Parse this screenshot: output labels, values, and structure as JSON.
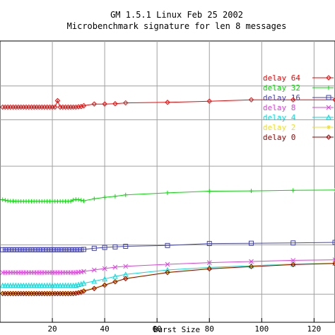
{
  "chart_data": {
    "type": "line",
    "title": "GM 1.5.1 Linux Feb 25 2002",
    "subtitle": "Microbenchmark signature for len 8 messages",
    "xlabel": "Burst Size",
    "ylabel": "",
    "xlim": [
      0,
      128
    ],
    "ylim": [
      0,
      100
    ],
    "x_ticks": [
      20,
      40,
      60,
      80,
      100,
      120
    ],
    "y_gridlines": [
      10,
      27.5,
      55.5,
      72,
      84
    ],
    "grid": true,
    "legend_placement": "right",
    "series": [
      {
        "name": "delay 64",
        "color": "#ff0000",
        "marker": "diamond",
        "x": [
          1,
          2,
          3,
          4,
          5,
          6,
          7,
          8,
          9,
          10,
          11,
          12,
          13,
          14,
          15,
          16,
          17,
          18,
          19,
          20,
          21,
          22,
          23,
          24,
          25,
          26,
          27,
          28,
          29,
          30,
          31,
          32,
          36,
          40,
          44,
          48,
          64,
          80,
          96,
          112,
          128
        ],
        "y": [
          76.5,
          76.5,
          76.5,
          76.5,
          76.5,
          76.5,
          76.5,
          76.5,
          76.5,
          76.5,
          76.5,
          76.5,
          76.5,
          76.5,
          76.5,
          76.5,
          76.5,
          76.5,
          76.5,
          76.5,
          76.5,
          78.8,
          76.5,
          76.5,
          76.5,
          76.5,
          76.5,
          76.5,
          76.5,
          76.6,
          76.7,
          77.0,
          77.6,
          77.6,
          77.7,
          78.0,
          78.2,
          78.6,
          79.1,
          79.1,
          79.1
        ]
      },
      {
        "name": "delay 32",
        "color": "#00dd00",
        "marker": "plus",
        "x": [
          1,
          2,
          3,
          4,
          5,
          6,
          7,
          8,
          9,
          10,
          11,
          12,
          13,
          14,
          15,
          16,
          17,
          18,
          19,
          20,
          21,
          22,
          23,
          24,
          25,
          26,
          27,
          28,
          29,
          30,
          31,
          32,
          36,
          40,
          44,
          48,
          64,
          80,
          96,
          112,
          128
        ],
        "y": [
          43.6,
          43.4,
          43.2,
          43.1,
          43.1,
          43.0,
          43.0,
          43.0,
          43.0,
          43.0,
          43.0,
          43.0,
          43.0,
          43.0,
          43.0,
          43.0,
          43.0,
          43.0,
          43.0,
          43.0,
          43.0,
          43.0,
          43.0,
          43.0,
          43.0,
          43.0,
          43.0,
          43.5,
          43.7,
          43.6,
          43.4,
          43.2,
          43.9,
          44.4,
          44.8,
          45.3,
          46.0,
          46.6,
          46.7,
          46.9,
          47.0
        ]
      },
      {
        "name": "delay 16",
        "color": "#4040c0",
        "marker": "square",
        "x": [
          1,
          2,
          3,
          4,
          5,
          6,
          7,
          8,
          9,
          10,
          11,
          12,
          13,
          14,
          15,
          16,
          17,
          18,
          19,
          20,
          21,
          22,
          23,
          24,
          25,
          26,
          27,
          28,
          29,
          30,
          31,
          32,
          36,
          40,
          44,
          48,
          64,
          80,
          96,
          112,
          128
        ],
        "y": [
          25.8,
          25.8,
          25.8,
          25.8,
          25.8,
          25.8,
          25.8,
          25.8,
          25.8,
          25.8,
          25.8,
          25.8,
          25.8,
          25.8,
          25.8,
          25.8,
          25.8,
          25.8,
          25.8,
          25.8,
          25.8,
          25.8,
          25.8,
          25.8,
          25.8,
          25.8,
          25.8,
          25.8,
          25.8,
          25.8,
          25.8,
          25.9,
          26.3,
          26.6,
          26.8,
          27.0,
          27.3,
          28.0,
          28.1,
          28.2,
          28.4
        ]
      },
      {
        "name": "delay 8",
        "color": "#e040e0",
        "marker": "x",
        "x": [
          1,
          2,
          3,
          4,
          5,
          6,
          7,
          8,
          9,
          10,
          11,
          12,
          13,
          14,
          15,
          16,
          17,
          18,
          19,
          20,
          21,
          22,
          23,
          24,
          25,
          26,
          27,
          28,
          29,
          30,
          31,
          32,
          36,
          40,
          44,
          48,
          64,
          80,
          96,
          112,
          128
        ],
        "y": [
          17.7,
          17.7,
          17.7,
          17.7,
          17.7,
          17.7,
          17.7,
          17.7,
          17.7,
          17.7,
          17.7,
          17.7,
          17.7,
          17.7,
          17.7,
          17.7,
          17.7,
          17.7,
          17.7,
          17.7,
          17.7,
          17.7,
          17.7,
          17.7,
          17.7,
          17.7,
          17.7,
          17.7,
          17.7,
          17.8,
          17.9,
          18.1,
          18.6,
          19.1,
          19.6,
          19.9,
          20.6,
          21.2,
          21.6,
          22.0,
          22.2
        ]
      },
      {
        "name": "delay 4",
        "color": "#00dddd",
        "marker": "triangle",
        "x": [
          1,
          2,
          3,
          4,
          5,
          6,
          7,
          8,
          9,
          10,
          11,
          12,
          13,
          14,
          15,
          16,
          17,
          18,
          19,
          20,
          21,
          22,
          23,
          24,
          25,
          26,
          27,
          28,
          29,
          30,
          31,
          32,
          36,
          40,
          44,
          48,
          64,
          80,
          96,
          112,
          128
        ],
        "y": [
          13.1,
          13.1,
          13.1,
          13.1,
          13.1,
          13.1,
          13.1,
          13.1,
          13.1,
          13.1,
          13.1,
          13.1,
          13.1,
          13.1,
          13.1,
          13.1,
          13.1,
          13.1,
          13.1,
          13.1,
          13.1,
          13.1,
          13.1,
          13.1,
          13.1,
          13.1,
          13.1,
          13.1,
          13.2,
          13.4,
          13.6,
          13.9,
          14.6,
          15.4,
          16.3,
          17.0,
          18.6,
          19.5,
          20.1,
          20.7,
          21.0
        ]
      },
      {
        "name": "delay 2",
        "color": "#f0e020",
        "marker": "star",
        "x": [
          1,
          2,
          3,
          4,
          5,
          6,
          7,
          8,
          9,
          10,
          11,
          12,
          13,
          14,
          15,
          16,
          17,
          18,
          19,
          20,
          21,
          22,
          23,
          24,
          25,
          26,
          27,
          28,
          29,
          30,
          31,
          32,
          36,
          40,
          44,
          48,
          64,
          80,
          96,
          112,
          128
        ],
        "y": [
          10.4,
          10.4,
          10.4,
          10.4,
          10.4,
          10.4,
          10.4,
          10.4,
          10.4,
          10.4,
          10.4,
          10.4,
          10.4,
          10.4,
          10.4,
          10.4,
          10.4,
          10.4,
          10.4,
          10.4,
          10.4,
          10.4,
          10.4,
          10.4,
          10.4,
          10.4,
          10.4,
          10.4,
          10.5,
          10.7,
          10.9,
          11.3,
          12.2,
          13.4,
          14.5,
          15.6,
          17.8,
          19.1,
          19.9,
          20.6,
          21.0
        ]
      },
      {
        "name": "delay 0",
        "color": "#990000",
        "marker": "diamond",
        "x": [
          1,
          2,
          3,
          4,
          5,
          6,
          7,
          8,
          9,
          10,
          11,
          12,
          13,
          14,
          15,
          16,
          17,
          18,
          19,
          20,
          21,
          22,
          23,
          24,
          25,
          26,
          27,
          28,
          29,
          30,
          31,
          32,
          36,
          40,
          44,
          48,
          64,
          80,
          96,
          112,
          128
        ],
        "y": [
          10.2,
          10.2,
          10.2,
          10.2,
          10.2,
          10.2,
          10.2,
          10.2,
          10.2,
          10.2,
          10.2,
          10.2,
          10.2,
          10.2,
          10.2,
          10.2,
          10.2,
          10.2,
          10.2,
          10.2,
          10.2,
          10.2,
          10.2,
          10.2,
          10.2,
          10.2,
          10.2,
          10.2,
          10.3,
          10.5,
          10.7,
          11.1,
          12.0,
          13.2,
          14.4,
          15.5,
          17.7,
          19.0,
          19.8,
          20.5,
          20.9
        ]
      }
    ]
  }
}
